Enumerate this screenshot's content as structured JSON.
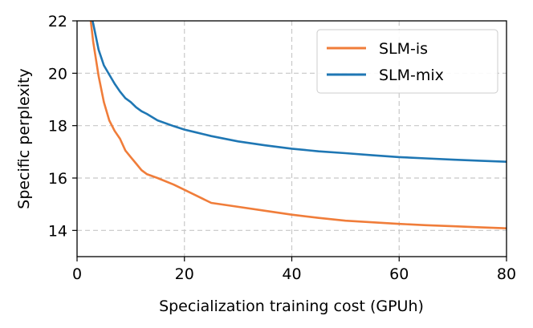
{
  "chart_data": {
    "type": "line",
    "title": "",
    "xlabel": "Specialization training cost (GPUh)",
    "ylabel": "Specific perplexity",
    "xlim": [
      0,
      80
    ],
    "ylim": [
      13,
      22
    ],
    "xticks": [
      0,
      20,
      40,
      60,
      80
    ],
    "yticks": [
      14,
      16,
      18,
      20,
      22
    ],
    "grid": true,
    "legend_position": "top-right",
    "series": [
      {
        "name": "SLM-is",
        "color": "#f07d3a",
        "x": [
          2.5,
          3,
          4,
          5,
          6,
          7,
          8,
          9,
          10,
          11,
          12,
          13,
          15,
          18,
          20,
          22,
          25,
          30,
          35,
          40,
          45,
          50,
          55,
          60,
          65,
          70,
          75,
          80
        ],
        "y": [
          22.1,
          21.2,
          19.9,
          18.9,
          18.2,
          17.8,
          17.5,
          17.05,
          16.8,
          16.55,
          16.3,
          16.15,
          16.0,
          15.75,
          15.55,
          15.35,
          15.05,
          14.9,
          14.75,
          14.6,
          14.48,
          14.37,
          14.31,
          14.25,
          14.2,
          14.16,
          14.12,
          14.08
        ]
      },
      {
        "name": "SLM-mix",
        "color": "#1f77b4",
        "x": [
          2.5,
          3,
          4,
          5,
          6,
          7,
          8,
          9,
          10,
          11,
          12,
          13,
          15,
          18,
          20,
          22,
          25,
          30,
          35,
          40,
          45,
          50,
          55,
          60,
          65,
          70,
          75,
          80
        ],
        "y": [
          22.3,
          21.9,
          20.9,
          20.3,
          19.95,
          19.6,
          19.3,
          19.05,
          18.9,
          18.7,
          18.55,
          18.45,
          18.2,
          17.98,
          17.85,
          17.75,
          17.6,
          17.4,
          17.25,
          17.12,
          17.02,
          16.95,
          16.87,
          16.8,
          16.75,
          16.7,
          16.66,
          16.62
        ]
      }
    ]
  }
}
